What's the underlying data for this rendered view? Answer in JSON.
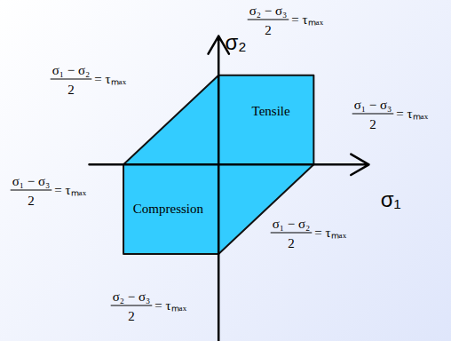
{
  "chart_data": {
    "type": "polygon",
    "x_label": "σ₁",
    "y_label": "σ₂",
    "xlim": [
      -1.36,
      1.58
    ],
    "ylim": [
      -1.98,
      1.44
    ],
    "xticks": [],
    "yticks": [],
    "tick_labels": false,
    "color": "#33ccff",
    "x": [
      0,
      1,
      1,
      0,
      -1,
      -1
    ],
    "y": [
      1,
      1,
      0,
      -1,
      -1,
      0
    ],
    "regions": [
      "Tensile",
      "Compression"
    ],
    "annotations": [
      {
        "numerator": "σ₂ − σ₃",
        "denominator": "2",
        "rhs": "= τₘₐₓ"
      },
      {
        "numerator": "σ₁ − σ₂",
        "denominator": "2",
        "rhs": "= τₘₐₓ"
      },
      {
        "numerator": "σ₁ − σ₃",
        "denominator": "2",
        "rhs": "= τₘₐₓ"
      },
      {
        "numerator": "σ₁ − σ₃",
        "denominator": "2",
        "rhs": "= τₘₐₓ"
      },
      {
        "numerator": "σ₁ − σ₂",
        "denominator": "2",
        "rhs": "= τₘₐₓ"
      },
      {
        "numerator": "σ₂ − σ₃",
        "denominator": "2",
        "rhs": "= τₘₐₓ"
      }
    ]
  }
}
